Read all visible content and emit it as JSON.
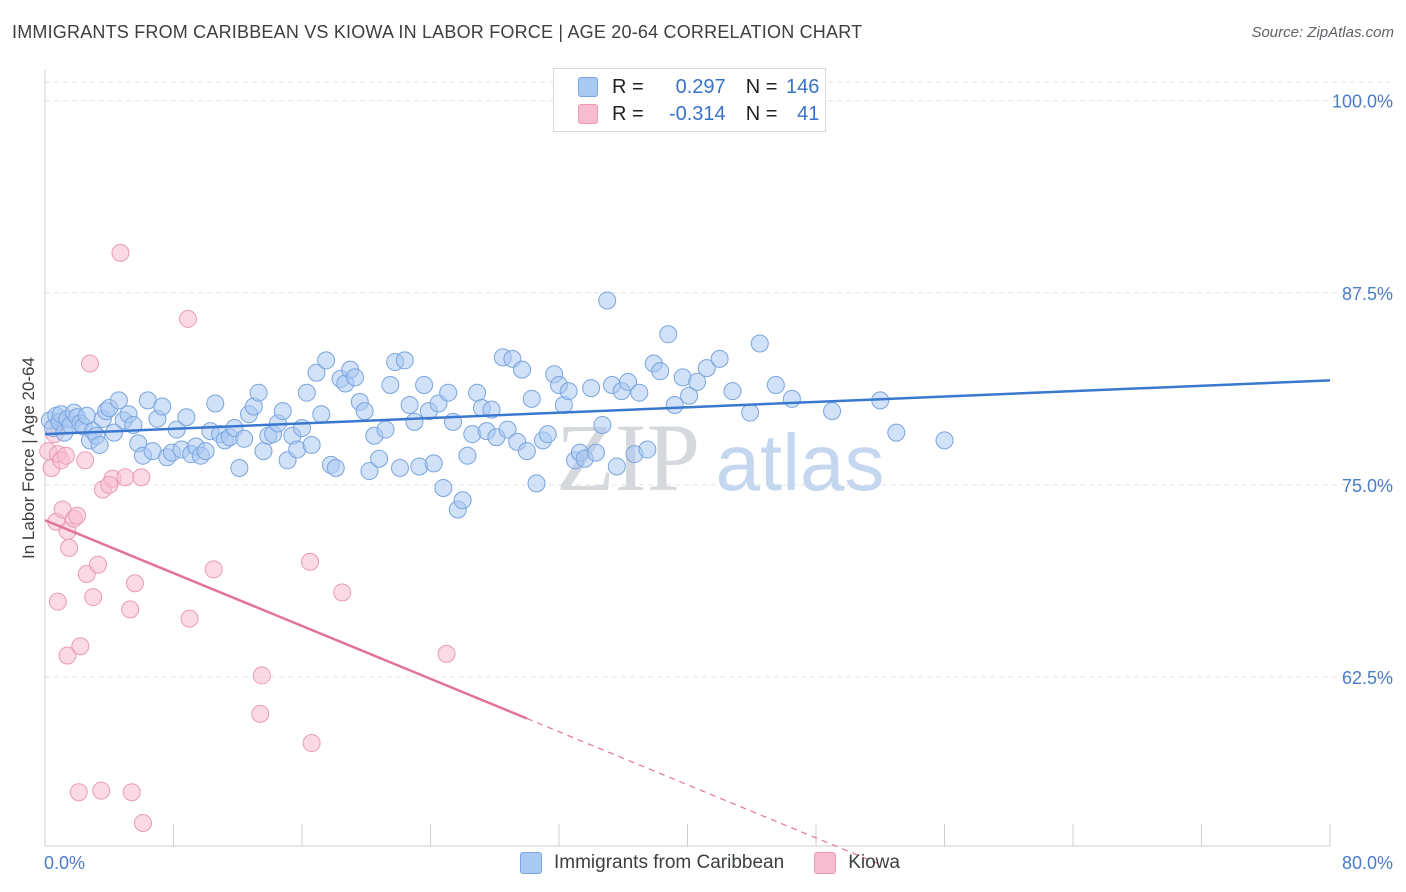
{
  "title": "IMMIGRANTS FROM CARIBBEAN VS KIOWA IN LABOR FORCE | AGE 20-64 CORRELATION CHART",
  "source": "Source: ZipAtlas.com",
  "watermark": {
    "zip": "ZIP",
    "atlas": "atlas"
  },
  "legend": {
    "r_label": "R =",
    "n_label": "N =",
    "rows": [
      {
        "r": "0.297",
        "n": "146",
        "color": "#a9c8f2"
      },
      {
        "r": "-0.314",
        "n": "41",
        "color": "#f7bcd0"
      }
    ]
  },
  "colors": {
    "blue_fill": "#a9c8f2",
    "blue_stroke": "#7aa5de",
    "blue_line": "#3a78d0",
    "pink_fill": "#f7bcd0",
    "pink_stroke": "#e99bb6",
    "pink_line": "#e2739c",
    "axis_text": "#4a7cc9"
  },
  "chart_data": {
    "type": "scatter",
    "title": "IMMIGRANTS FROM CARIBBEAN VS KIOWA IN LABOR FORCE | AGE 20-64 CORRELATION CHART",
    "xlabel": "",
    "ylabel": "In Labor Force | Age 20-64",
    "xlim": [
      0,
      80
    ],
    "ylim": [
      51.5,
      102
    ],
    "x_tick_labels": [
      "0.0%",
      "80.0%"
    ],
    "y_ticks": [
      62.5,
      75.0,
      87.5,
      100.0
    ],
    "y_tick_labels": [
      "62.5%",
      "75.0%",
      "87.5%",
      "100.0%"
    ],
    "grid": true,
    "legend_position": "top-center",
    "series": [
      {
        "name": "Immigrants from Caribbean",
        "r": 0.297,
        "n": 146,
        "trend": {
          "x0": 0,
          "y0": 78.3,
          "x1": 80,
          "y1": 81.8
        },
        "points": [
          [
            0.3,
            79.2
          ],
          [
            0.5,
            78.7
          ],
          [
            0.7,
            79.5
          ],
          [
            0.9,
            79.1
          ],
          [
            1.0,
            79.6
          ],
          [
            1.2,
            78.4
          ],
          [
            1.4,
            79.3
          ],
          [
            1.6,
            78.9
          ],
          [
            1.8,
            79.7
          ],
          [
            2.0,
            79.4
          ],
          [
            2.2,
            79.0
          ],
          [
            2.4,
            78.8
          ],
          [
            2.6,
            79.5
          ],
          [
            2.8,
            77.9
          ],
          [
            3.0,
            78.5
          ],
          [
            3.2,
            78.2
          ],
          [
            3.4,
            77.6
          ],
          [
            3.6,
            79.3
          ],
          [
            3.8,
            79.8
          ],
          [
            4.0,
            80.0
          ],
          [
            4.3,
            78.4
          ],
          [
            4.6,
            80.5
          ],
          [
            4.9,
            79.2
          ],
          [
            5.2,
            79.6
          ],
          [
            5.5,
            78.9
          ],
          [
            5.8,
            77.7
          ],
          [
            6.1,
            76.9
          ],
          [
            6.4,
            80.5
          ],
          [
            6.7,
            77.2
          ],
          [
            7.0,
            79.3
          ],
          [
            7.3,
            80.1
          ],
          [
            7.6,
            76.8
          ],
          [
            7.9,
            77.1
          ],
          [
            8.2,
            78.6
          ],
          [
            8.5,
            77.3
          ],
          [
            8.8,
            79.4
          ],
          [
            9.1,
            77.0
          ],
          [
            9.4,
            77.5
          ],
          [
            9.7,
            76.9
          ],
          [
            10.0,
            77.2
          ],
          [
            10.3,
            78.5
          ],
          [
            10.6,
            80.3
          ],
          [
            10.9,
            78.3
          ],
          [
            11.2,
            77.9
          ],
          [
            11.5,
            78.1
          ],
          [
            11.8,
            78.7
          ],
          [
            12.1,
            76.1
          ],
          [
            12.4,
            78.0
          ],
          [
            12.7,
            79.6
          ],
          [
            13.0,
            80.1
          ],
          [
            13.3,
            81.0
          ],
          [
            13.6,
            77.2
          ],
          [
            13.9,
            78.2
          ],
          [
            14.2,
            78.3
          ],
          [
            14.5,
            79.0
          ],
          [
            14.8,
            79.8
          ],
          [
            15.1,
            76.6
          ],
          [
            15.4,
            78.2
          ],
          [
            15.7,
            77.3
          ],
          [
            16.0,
            78.7
          ],
          [
            16.3,
            81.0
          ],
          [
            16.6,
            77.6
          ],
          [
            16.9,
            82.3
          ],
          [
            17.2,
            79.6
          ],
          [
            17.5,
            83.1
          ],
          [
            17.8,
            76.3
          ],
          [
            18.1,
            76.1
          ],
          [
            18.4,
            81.9
          ],
          [
            18.7,
            81.6
          ],
          [
            19.0,
            82.5
          ],
          [
            19.3,
            82.0
          ],
          [
            19.6,
            80.4
          ],
          [
            19.9,
            79.8
          ],
          [
            20.2,
            75.9
          ],
          [
            20.5,
            78.2
          ],
          [
            20.8,
            76.7
          ],
          [
            21.2,
            78.6
          ],
          [
            21.5,
            81.5
          ],
          [
            21.8,
            83.0
          ],
          [
            22.1,
            76.1
          ],
          [
            22.4,
            83.1
          ],
          [
            22.7,
            80.2
          ],
          [
            23.0,
            79.1
          ],
          [
            23.3,
            76.2
          ],
          [
            23.6,
            81.5
          ],
          [
            23.9,
            79.8
          ],
          [
            24.2,
            76.4
          ],
          [
            24.5,
            80.3
          ],
          [
            24.8,
            74.8
          ],
          [
            25.1,
            81.0
          ],
          [
            25.4,
            79.1
          ],
          [
            25.7,
            73.4
          ],
          [
            26.0,
            74.0
          ],
          [
            26.3,
            76.9
          ],
          [
            26.6,
            78.3
          ],
          [
            26.9,
            81.0
          ],
          [
            27.2,
            80.0
          ],
          [
            27.5,
            78.5
          ],
          [
            27.8,
            79.9
          ],
          [
            28.1,
            78.1
          ],
          [
            28.5,
            83.3
          ],
          [
            28.8,
            78.6
          ],
          [
            29.1,
            83.2
          ],
          [
            29.4,
            77.8
          ],
          [
            29.7,
            82.5
          ],
          [
            30.0,
            77.2
          ],
          [
            30.3,
            80.6
          ],
          [
            30.6,
            75.1
          ],
          [
            31.0,
            77.9
          ],
          [
            31.3,
            78.3
          ],
          [
            31.7,
            82.2
          ],
          [
            32.0,
            81.5
          ],
          [
            32.3,
            80.2
          ],
          [
            32.6,
            81.1
          ],
          [
            33.0,
            76.6
          ],
          [
            33.3,
            77.1
          ],
          [
            33.6,
            76.7
          ],
          [
            34.0,
            81.3
          ],
          [
            34.3,
            77.1
          ],
          [
            34.7,
            78.9
          ],
          [
            35.0,
            87.0
          ],
          [
            35.3,
            81.5
          ],
          [
            35.6,
            76.2
          ],
          [
            35.9,
            81.1
          ],
          [
            36.3,
            81.7
          ],
          [
            36.7,
            77.0
          ],
          [
            37.0,
            81.0
          ],
          [
            37.5,
            77.3
          ],
          [
            37.9,
            82.9
          ],
          [
            38.3,
            82.4
          ],
          [
            38.8,
            84.8
          ],
          [
            39.2,
            80.2
          ],
          [
            39.7,
            82.0
          ],
          [
            40.1,
            80.8
          ],
          [
            40.6,
            81.7
          ],
          [
            41.2,
            82.6
          ],
          [
            42.0,
            83.2
          ],
          [
            42.8,
            81.1
          ],
          [
            43.9,
            79.7
          ],
          [
            44.5,
            84.2
          ],
          [
            45.5,
            81.5
          ],
          [
            46.5,
            80.6
          ],
          [
            49.0,
            79.8
          ],
          [
            52.0,
            80.5
          ],
          [
            53.0,
            78.4
          ],
          [
            56.0,
            77.9
          ]
        ]
      },
      {
        "name": "Kiowa",
        "r": -0.314,
        "n": 41,
        "trend": {
          "x0": 0,
          "y0": 72.7,
          "x1": 30,
          "y1": 59.8,
          "dash_x1": 52,
          "dash_y1": 50.3
        },
        "points": [
          [
            0.2,
            77.2
          ],
          [
            0.4,
            76.1
          ],
          [
            0.6,
            78.3
          ],
          [
            0.8,
            77.0
          ],
          [
            1.0,
            76.6
          ],
          [
            1.3,
            76.9
          ],
          [
            0.7,
            72.6
          ],
          [
            1.1,
            73.4
          ],
          [
            1.4,
            72.0
          ],
          [
            1.8,
            72.8
          ],
          [
            1.5,
            70.9
          ],
          [
            2.0,
            73.0
          ],
          [
            0.8,
            67.4
          ],
          [
            1.4,
            63.9
          ],
          [
            2.2,
            64.5
          ],
          [
            2.6,
            69.2
          ],
          [
            3.0,
            67.7
          ],
          [
            3.3,
            69.8
          ],
          [
            3.6,
            74.7
          ],
          [
            4.2,
            75.4
          ],
          [
            2.8,
            82.9
          ],
          [
            4.7,
            90.1
          ],
          [
            5.0,
            75.5
          ],
          [
            5.3,
            66.9
          ],
          [
            5.6,
            68.6
          ],
          [
            6.0,
            75.5
          ],
          [
            8.9,
            85.8
          ],
          [
            9.0,
            66.3
          ],
          [
            10.5,
            69.5
          ],
          [
            13.5,
            62.6
          ],
          [
            13.4,
            60.1
          ],
          [
            16.5,
            70.0
          ],
          [
            16.6,
            58.2
          ],
          [
            18.5,
            68.0
          ],
          [
            25.0,
            64.0
          ],
          [
            2.1,
            55.0
          ],
          [
            3.5,
            55.1
          ],
          [
            5.4,
            55.0
          ],
          [
            6.1,
            53.0
          ],
          [
            4.0,
            75.0
          ],
          [
            2.5,
            76.6
          ]
        ]
      }
    ]
  }
}
